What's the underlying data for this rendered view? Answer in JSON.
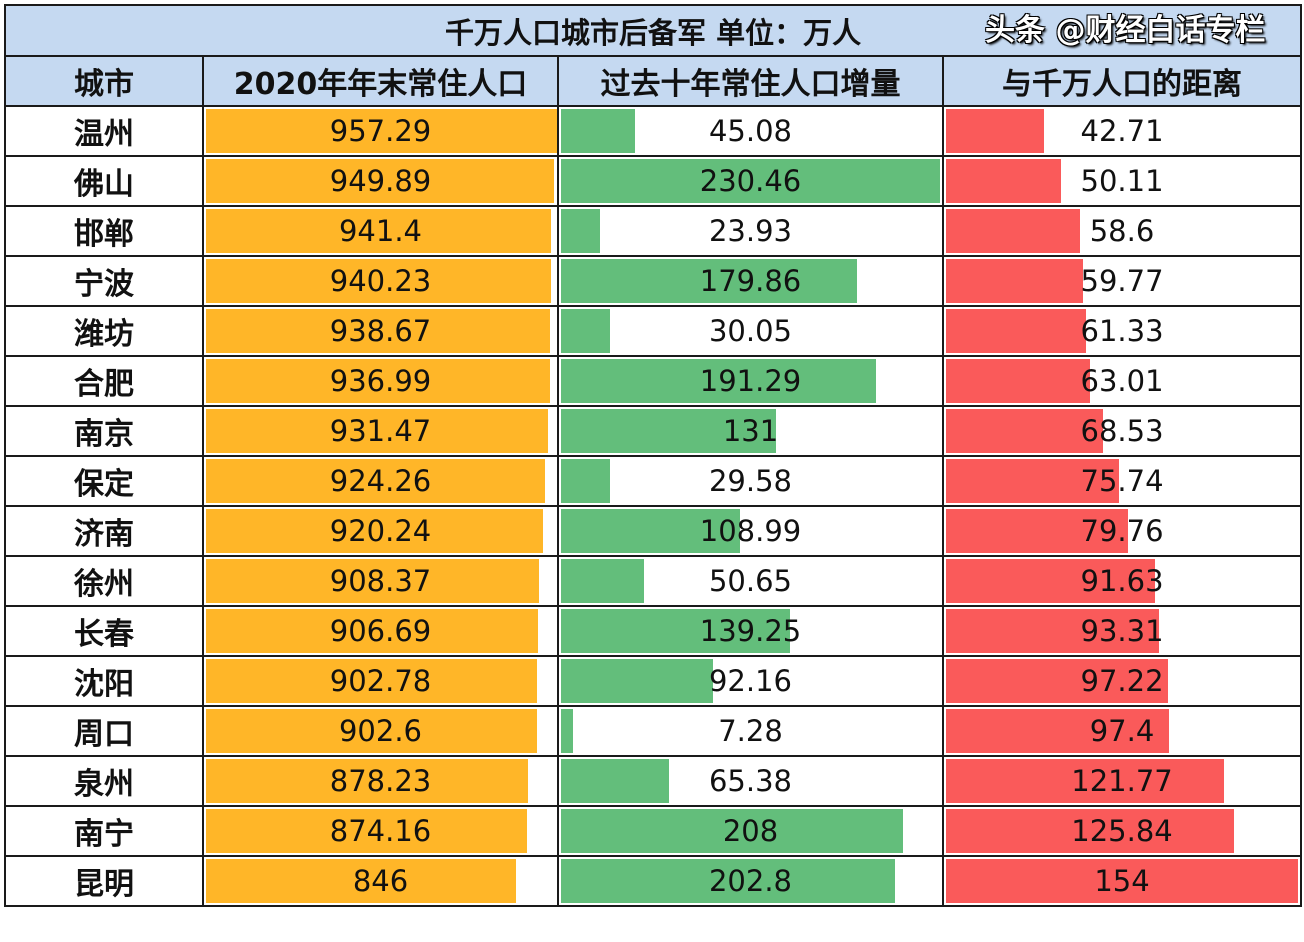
{
  "title": "千万人口城市后备军  单位：万人",
  "columns": [
    "城市",
    "2020年年末常住人口",
    "过去十年常住人口增量",
    "与千万人口的距离"
  ],
  "colors": {
    "population_bar": "#ffb628",
    "growth_bar": "#63be7b",
    "distance_bar": "#fa5a5a",
    "header_bg": "#c5d9f1"
  },
  "rows": [
    {
      "city": "温州",
      "population": 957.29,
      "growth": 45.08,
      "distance": 42.71
    },
    {
      "city": "佛山",
      "population": 949.89,
      "growth": 230.46,
      "distance": 50.11
    },
    {
      "city": "邯郸",
      "population": 941.4,
      "growth": 23.93,
      "distance": 58.6
    },
    {
      "city": "宁波",
      "population": 940.23,
      "growth": 179.86,
      "distance": 59.77
    },
    {
      "city": "潍坊",
      "population": 938.67,
      "growth": 30.05,
      "distance": 61.33
    },
    {
      "city": "合肥",
      "population": 936.99,
      "growth": 191.29,
      "distance": 63.01
    },
    {
      "city": "南京",
      "population": 931.47,
      "growth": 131,
      "distance": 68.53
    },
    {
      "city": "保定",
      "population": 924.26,
      "growth": 29.58,
      "distance": 75.74
    },
    {
      "city": "济南",
      "population": 920.24,
      "growth": 108.99,
      "distance": 79.76
    },
    {
      "city": "徐州",
      "population": 908.37,
      "growth": 50.65,
      "distance": 91.63
    },
    {
      "city": "长春",
      "population": 906.69,
      "growth": 139.25,
      "distance": 93.31
    },
    {
      "city": "沈阳",
      "population": 902.78,
      "growth": 92.16,
      "distance": 97.22
    },
    {
      "city": "周口",
      "population": 902.6,
      "growth": 7.28,
      "distance": 97.4
    },
    {
      "city": "泉州",
      "population": 878.23,
      "growth": 65.38,
      "distance": 121.77
    },
    {
      "city": "南宁",
      "population": 874.16,
      "growth": 208,
      "distance": 125.84
    },
    {
      "city": "昆明",
      "population": 846,
      "growth": 202.8,
      "distance": 154
    }
  ],
  "watermark": "头条 @财经白话专栏"
}
